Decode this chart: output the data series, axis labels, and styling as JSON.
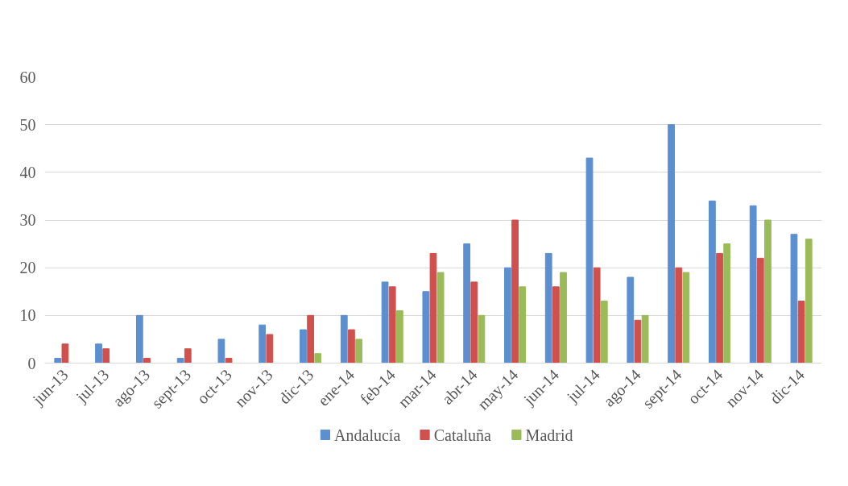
{
  "chart_data": {
    "type": "bar",
    "categories": [
      "jun-13",
      "jul-13",
      "ago-13",
      "sept-13",
      "oct-13",
      "nov-13",
      "dic-13",
      "ene-14",
      "feb-14",
      "mar-14",
      "abr-14",
      "may-14",
      "jun-14",
      "jul-14",
      "ago-14",
      "sept-14",
      "oct-14",
      "nov-14",
      "dic-14"
    ],
    "series": [
      {
        "name": "Andalucía",
        "color": "#5b8fd0",
        "values": [
          1,
          4,
          10,
          1,
          5,
          8,
          7,
          10,
          17,
          15,
          25,
          20,
          23,
          43,
          18,
          50,
          34,
          33,
          27
        ]
      },
      {
        "name": "Cataluña",
        "color": "#d0504d",
        "values": [
          4,
          3,
          1,
          3,
          1,
          6,
          10,
          7,
          16,
          23,
          17,
          30,
          16,
          20,
          9,
          20,
          23,
          22,
          13
        ]
      },
      {
        "name": "Madrid",
        "color": "#9bbb59",
        "values": [
          0,
          0,
          0,
          0,
          0,
          0,
          2,
          5,
          11,
          19,
          10,
          16,
          19,
          13,
          10,
          19,
          25,
          30,
          26
        ]
      }
    ],
    "ylim": [
      0,
      60
    ],
    "yticks": [
      0,
      10,
      20,
      30,
      40,
      50,
      60
    ],
    "grid": "y",
    "legend": "bottom"
  }
}
